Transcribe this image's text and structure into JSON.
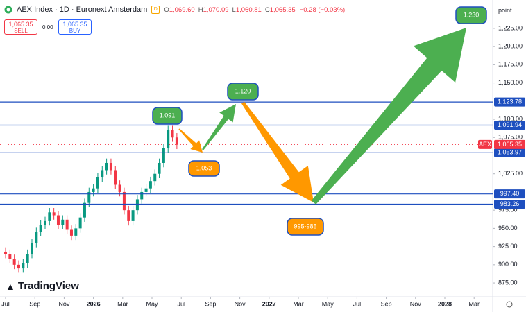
{
  "chart_data": {
    "type": "candlestick",
    "title": "AEX Index · 1D · Euronext Amsterdam",
    "ohlc_header": [
      {
        "label": "O",
        "value": "1,069.60"
      },
      {
        "label": "H",
        "value": "1,070.09"
      },
      {
        "label": "L",
        "value": "1,060.81"
      },
      {
        "label": "C",
        "value": "1,065.35"
      }
    ],
    "change": "−0.28 (−0.03%)",
    "sell": {
      "price": "1,065.35",
      "label": "SELL"
    },
    "spread": "0.00",
    "buy": {
      "price": "1,065.35",
      "label": "BUY"
    },
    "unit_label": "point",
    "logo": "TradingView",
    "up_color": "#089981",
    "down_color": "#f23645",
    "x": [
      0,
      0.3,
      0.6,
      0.9,
      1.2,
      1.5,
      1.8,
      2.1,
      2.4,
      2.7,
      3,
      3.3,
      3.6,
      3.9,
      4.2,
      4.5,
      4.8,
      5.1,
      5.4,
      5.7,
      6,
      6.3,
      6.6,
      6.9,
      7.2,
      7.5,
      7.8,
      8.1,
      8.4,
      8.7,
      9,
      9.3,
      9.6,
      9.9,
      10.2,
      10.5,
      10.8,
      11.1,
      11.4,
      11.7
    ],
    "open": [
      918,
      915,
      908,
      900,
      895,
      902,
      915,
      930,
      945,
      955,
      960,
      972,
      968,
      955,
      962,
      948,
      940,
      950,
      965,
      985,
      1000,
      1005,
      1020,
      1030,
      1040,
      1030,
      1010,
      1000,
      975,
      960,
      975,
      990,
      1000,
      1005,
      1015,
      1025,
      1040,
      1060,
      1085,
      1075
    ],
    "high": [
      924,
      921,
      914,
      906,
      908,
      921,
      936,
      951,
      961,
      966,
      978,
      978,
      974,
      968,
      968,
      954,
      956,
      971,
      991,
      1006,
      1011,
      1026,
      1036,
      1046,
      1046,
      1036,
      1016,
      1006,
      981,
      981,
      996,
      1006,
      1011,
      1021,
      1031,
      1046,
      1066,
      1091,
      1091,
      1081
    ],
    "low": [
      909,
      902,
      894,
      889,
      889,
      896,
      909,
      924,
      939,
      949,
      954,
      962,
      949,
      949,
      942,
      934,
      934,
      944,
      959,
      979,
      994,
      999,
      1014,
      1024,
      1024,
      1004,
      994,
      969,
      954,
      954,
      969,
      984,
      994,
      999,
      1009,
      1019,
      1034,
      1054,
      1069,
      1059
    ],
    "close": [
      915,
      908,
      900,
      895,
      902,
      915,
      930,
      945,
      955,
      960,
      972,
      968,
      955,
      962,
      948,
      940,
      950,
      965,
      985,
      1000,
      1005,
      1020,
      1030,
      1040,
      1030,
      1010,
      1000,
      975,
      960,
      975,
      990,
      1000,
      1005,
      1015,
      1025,
      1040,
      1060,
      1085,
      1075,
      1065
    ],
    "xlim": [
      -0.38,
      33.27
    ],
    "xticks": [
      {
        "value": 0,
        "label": "Jul"
      },
      {
        "value": 2,
        "label": "Sep"
      },
      {
        "value": 4,
        "label": "Nov"
      },
      {
        "value": 6,
        "label": "2026"
      },
      {
        "value": 8,
        "label": "Mar"
      },
      {
        "value": 10,
        "label": "May"
      },
      {
        "value": 12,
        "label": "Jul"
      },
      {
        "value": 14,
        "label": "Sep"
      },
      {
        "value": 16,
        "label": "Nov"
      },
      {
        "value": 18,
        "label": "2027"
      },
      {
        "value": 20,
        "label": "Mar"
      },
      {
        "value": 22,
        "label": "May"
      },
      {
        "value": 24,
        "label": "Jul"
      },
      {
        "value": 26,
        "label": "Sep"
      },
      {
        "value": 28,
        "label": "Nov"
      },
      {
        "value": 30,
        "label": "2028"
      },
      {
        "value": 32,
        "label": "Mar"
      }
    ],
    "ylim": [
      856,
      1264
    ],
    "yticks": [
      {
        "value": 875,
        "label": "875.00"
      },
      {
        "value": 900,
        "label": "900.00"
      },
      {
        "value": 925,
        "label": "925.00"
      },
      {
        "value": 950,
        "label": "950.00"
      },
      {
        "value": 975,
        "label": "975.00"
      },
      {
        "value": 1025,
        "label": "1,025.00"
      },
      {
        "value": 1075,
        "label": "1,075.00"
      },
      {
        "value": 1100,
        "label": "1,100.00"
      },
      {
        "value": 1150,
        "label": "1,150.00"
      },
      {
        "value": 1175,
        "label": "1,175.00"
      },
      {
        "value": 1200,
        "label": "1,200.00"
      },
      {
        "value": 1225,
        "label": "1,225.00"
      }
    ],
    "level_color": "#1e4fbf",
    "levels": [
      {
        "value": 1123.78,
        "label": "1,123.78"
      },
      {
        "value": 1091.94,
        "label": "1,091.94"
      },
      {
        "value": 1053.97,
        "label": "1,053.97"
      },
      {
        "value": 997.4,
        "label": "997.40"
      },
      {
        "value": 983.26,
        "label": "983.26"
      }
    ],
    "last_price": {
      "symbol": "AEX",
      "value": 1065.35,
      "label": "1,065.35",
      "color": "#f23645"
    },
    "annotations": [
      {
        "text": "1.091",
        "color": "#4caf50"
      },
      {
        "text": "1.053",
        "color": "#ff9800"
      },
      {
        "text": "1.120",
        "color": "#4caf50"
      },
      {
        "text": "995-985",
        "color": "#ff9800"
      },
      {
        "text": "1.230",
        "color": "#4caf50"
      }
    ]
  }
}
